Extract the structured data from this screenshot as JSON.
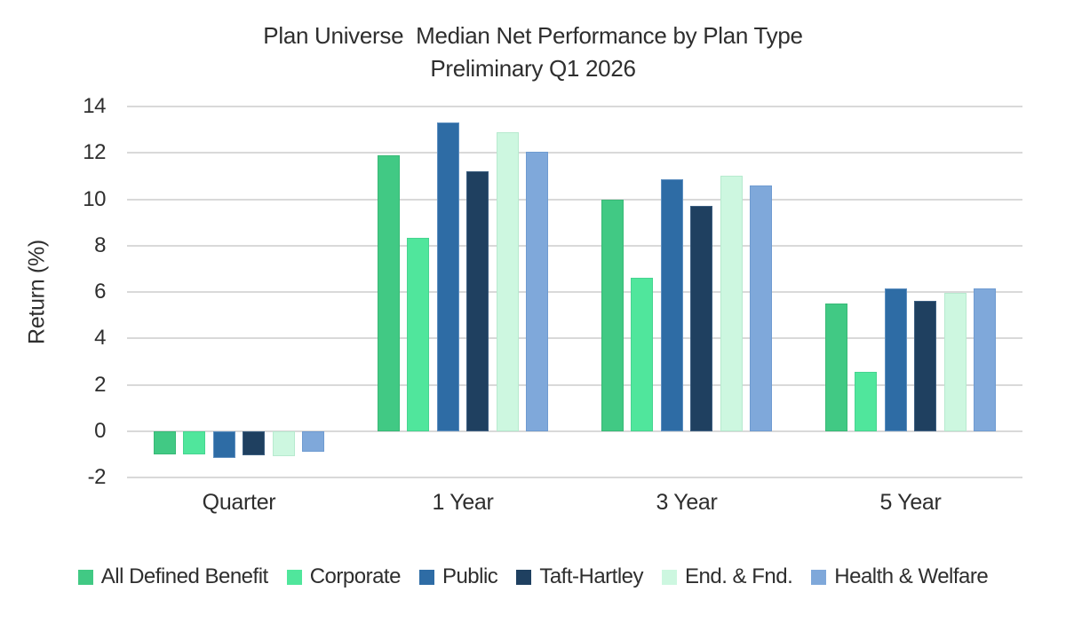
{
  "chart_data": {
    "type": "bar",
    "title": "Plan Universe  Median Net Performance by Plan Type",
    "subtitle": "Preliminary Q1 2026",
    "xlabel": "",
    "ylabel": "Return (%)",
    "ylim": [
      -2,
      14
    ],
    "ytick_step": 2,
    "grid": true,
    "gridline_color": "#d9d9d9",
    "text_color": "#2e2e2e",
    "background_color": "#ffffff",
    "legend_position": "bottom",
    "categories": [
      "Quarter",
      "1 Year",
      "3 Year",
      "5 Year"
    ],
    "series": [
      {
        "name": "All Defined Benefit",
        "color": "#41c984",
        "border_color": "#38b976",
        "values": [
          -1.0,
          11.9,
          10.0,
          5.5
        ]
      },
      {
        "name": "Corporate",
        "color": "#50e69c",
        "border_color": "#46d490",
        "values": [
          -1.0,
          8.35,
          6.6,
          2.55
        ]
      },
      {
        "name": "Public",
        "color": "#2e6ca5",
        "border_color": "#5d8fc0",
        "values": [
          -1.15,
          13.3,
          10.85,
          6.15
        ]
      },
      {
        "name": "Taft-Hartley",
        "color": "#1f4060",
        "border_color": "#3d5f81",
        "values": [
          -1.05,
          11.2,
          9.7,
          5.6
        ]
      },
      {
        "name": "End. & Fnd.",
        "color": "#cdf7e0",
        "border_color": "#b7eacf",
        "values": [
          -1.1,
          12.9,
          11.0,
          5.95
        ]
      },
      {
        "name": "Health & Welfare",
        "color": "#7fa8da",
        "border_color": "#6f9bd1",
        "values": [
          -0.9,
          12.05,
          10.6,
          6.15
        ]
      }
    ]
  }
}
